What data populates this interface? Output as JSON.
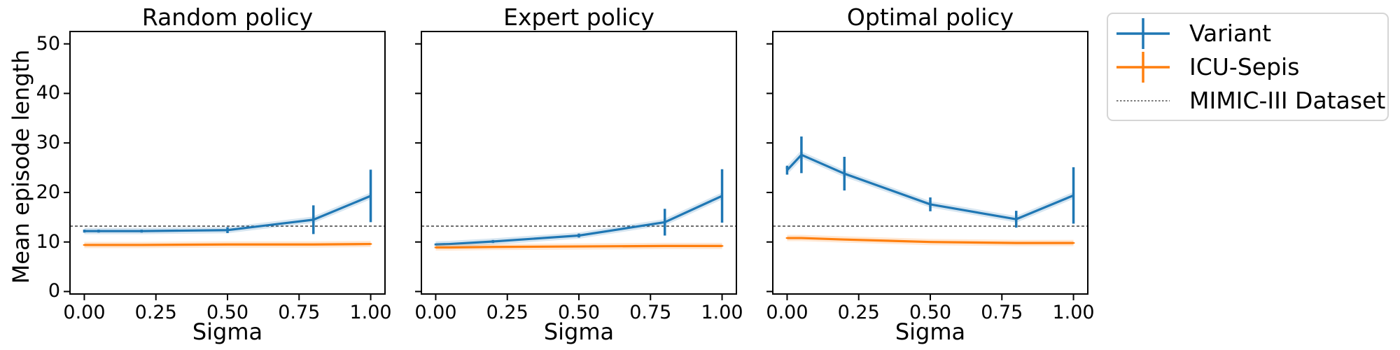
{
  "figure": {
    "ylabel": "Mean episode length",
    "background": "#ffffff",
    "colors": {
      "variant": "#1f77b4",
      "icu_sepis": "#ff7f0e",
      "mimic": "#4d4d4d",
      "axis": "#000000"
    }
  },
  "legend": {
    "items": [
      {
        "label": "Variant",
        "type": "errorbar",
        "color": "#1f77b4"
      },
      {
        "label": "ICU-Sepis",
        "type": "errorbar",
        "color": "#ff7f0e"
      },
      {
        "label": "MIMIC-III Dataset",
        "type": "dashed-line",
        "color": "#4d4d4d"
      }
    ]
  },
  "chart_data": [
    {
      "type": "line",
      "title": "Random policy",
      "xlabel": "Sigma",
      "ylabel": "Mean episode length",
      "xlim": [
        -0.05,
        1.05
      ],
      "ylim": [
        -0.5,
        52.5
      ],
      "xticks": [
        0,
        0.25,
        0.5,
        0.75,
        1.0
      ],
      "xtick_labels": [
        "0.00",
        "0.25",
        "0.50",
        "0.75",
        "1.00"
      ],
      "yticks": [
        0,
        10,
        20,
        30,
        40,
        50
      ],
      "ytick_labels": [
        "0",
        "10",
        "20",
        "30",
        "40",
        "50"
      ],
      "ytick_labels_visible": true,
      "grid": false,
      "x": [
        0.0,
        0.05,
        0.2,
        0.5,
        0.8,
        1.0
      ],
      "series": [
        {
          "name": "Variant",
          "color": "#1f77b4",
          "values": [
            12.2,
            12.2,
            12.2,
            12.4,
            14.5,
            19.3
          ],
          "yerr": [
            0.3,
            0.3,
            0.3,
            0.6,
            2.9,
            5.3
          ]
        },
        {
          "name": "ICU-Sepis",
          "color": "#ff7f0e",
          "values": [
            9.4,
            9.4,
            9.4,
            9.5,
            9.5,
            9.6
          ],
          "yerr": [
            0.15,
            0.15,
            0.15,
            0.15,
            0.15,
            0.15
          ]
        }
      ],
      "hline": {
        "name": "MIMIC-III Dataset",
        "value": 13.2,
        "style": "dashed",
        "color": "#4d4d4d"
      }
    },
    {
      "type": "line",
      "title": "Expert policy",
      "xlabel": "Sigma",
      "ylabel": "Mean episode length",
      "xlim": [
        -0.05,
        1.05
      ],
      "ylim": [
        -0.5,
        52.5
      ],
      "xticks": [
        0,
        0.25,
        0.5,
        0.75,
        1.0
      ],
      "xtick_labels": [
        "0.00",
        "0.25",
        "0.50",
        "0.75",
        "1.00"
      ],
      "yticks": [
        0,
        10,
        20,
        30,
        40,
        50
      ],
      "ytick_labels": [
        "0",
        "10",
        "20",
        "30",
        "40",
        "50"
      ],
      "ytick_labels_visible": false,
      "grid": false,
      "x": [
        0.0,
        0.05,
        0.2,
        0.5,
        0.8,
        1.0
      ],
      "series": [
        {
          "name": "Variant",
          "color": "#1f77b4",
          "values": [
            9.5,
            9.6,
            10.1,
            11.3,
            14.0,
            19.3
          ],
          "yerr": [
            0.2,
            0.2,
            0.3,
            0.4,
            2.7,
            5.4
          ]
        },
        {
          "name": "ICU-Sepis",
          "color": "#ff7f0e",
          "values": [
            8.9,
            8.9,
            9.0,
            9.1,
            9.2,
            9.2
          ],
          "yerr": [
            0.15,
            0.15,
            0.15,
            0.15,
            0.15,
            0.15
          ]
        }
      ],
      "hline": {
        "name": "MIMIC-III Dataset",
        "value": 13.2,
        "style": "dashed",
        "color": "#4d4d4d"
      }
    },
    {
      "type": "line",
      "title": "Optimal policy",
      "xlabel": "Sigma",
      "ylabel": "Mean episode length",
      "xlim": [
        -0.05,
        1.05
      ],
      "ylim": [
        -0.5,
        52.5
      ],
      "xticks": [
        0,
        0.25,
        0.5,
        0.75,
        1.0
      ],
      "xtick_labels": [
        "0.00",
        "0.25",
        "0.50",
        "0.75",
        "1.00"
      ],
      "yticks": [
        0,
        10,
        20,
        30,
        40,
        50
      ],
      "ytick_labels": [
        "0",
        "10",
        "20",
        "30",
        "40",
        "50"
      ],
      "ytick_labels_visible": false,
      "grid": false,
      "x": [
        0.0,
        0.05,
        0.2,
        0.5,
        0.8,
        1.0
      ],
      "series": [
        {
          "name": "Variant",
          "color": "#1f77b4",
          "values": [
            24.5,
            27.6,
            23.8,
            17.6,
            14.6,
            19.4
          ],
          "yerr": [
            0.9,
            3.7,
            3.4,
            1.4,
            1.7,
            5.7
          ]
        },
        {
          "name": "ICU-Sepis",
          "color": "#ff7f0e",
          "values": [
            10.8,
            10.8,
            10.5,
            10.0,
            9.8,
            9.8
          ],
          "yerr": [
            0.15,
            0.15,
            0.15,
            0.15,
            0.15,
            0.15
          ]
        }
      ],
      "hline": {
        "name": "MIMIC-III Dataset",
        "value": 13.2,
        "style": "dashed",
        "color": "#4d4d4d"
      }
    }
  ]
}
